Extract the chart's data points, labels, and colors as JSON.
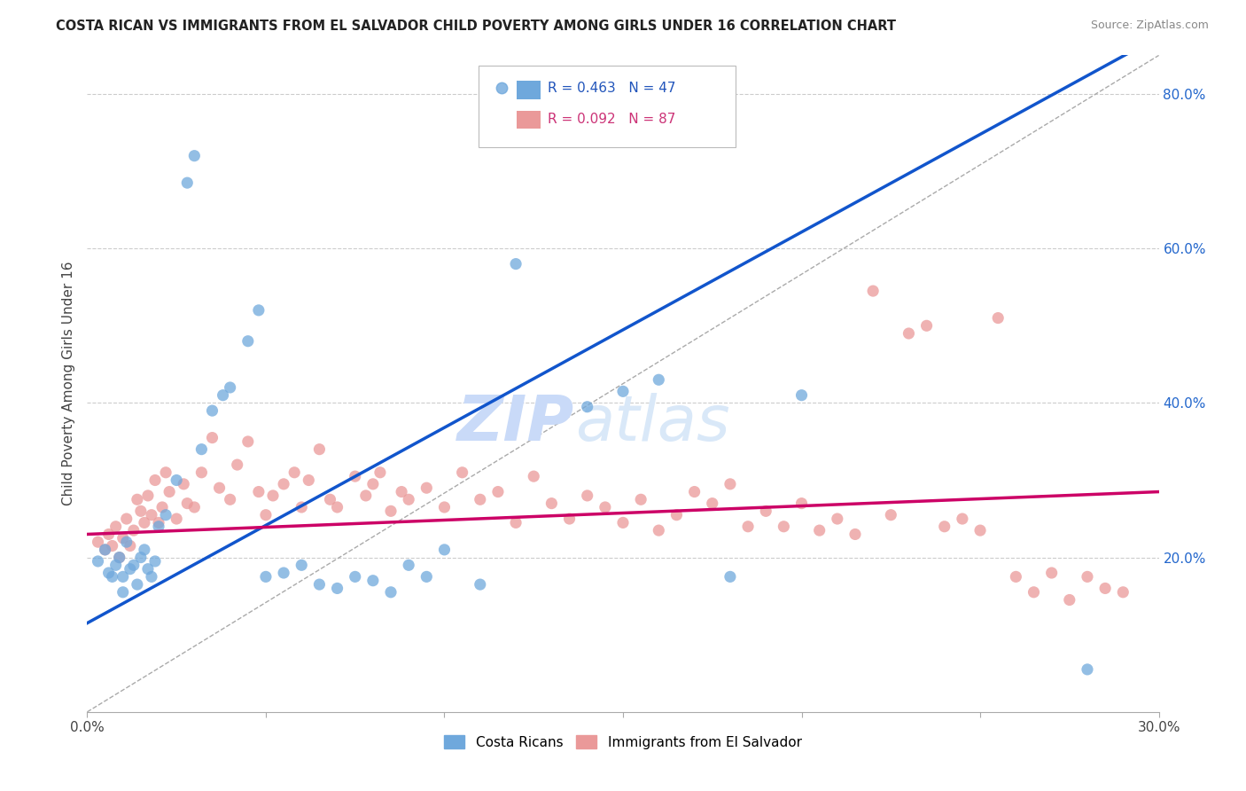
{
  "title": "COSTA RICAN VS IMMIGRANTS FROM EL SALVADOR CHILD POVERTY AMONG GIRLS UNDER 16 CORRELATION CHART",
  "source": "Source: ZipAtlas.com",
  "ylabel": "Child Poverty Among Girls Under 16",
  "xmin": 0.0,
  "xmax": 0.3,
  "ymin": 0.0,
  "ymax": 0.85,
  "right_yticks": [
    0.2,
    0.4,
    0.6,
    0.8
  ],
  "right_yticklabels": [
    "20.0%",
    "40.0%",
    "60.0%",
    "80.0%"
  ],
  "blue_color": "#6fa8dc",
  "pink_color": "#ea9999",
  "blue_line_color": "#1155cc",
  "pink_line_color": "#cc0066",
  "legend_R_blue": "R = 0.463",
  "legend_N_blue": "N = 47",
  "legend_R_pink": "R = 0.092",
  "legend_N_pink": "N = 87",
  "legend_label_blue": "Costa Ricans",
  "legend_label_pink": "Immigrants from El Salvador",
  "blue_scatter_x": [
    0.003,
    0.005,
    0.006,
    0.007,
    0.008,
    0.009,
    0.01,
    0.01,
    0.011,
    0.012,
    0.013,
    0.014,
    0.015,
    0.016,
    0.017,
    0.018,
    0.019,
    0.02,
    0.022,
    0.025,
    0.028,
    0.03,
    0.032,
    0.035,
    0.038,
    0.04,
    0.045,
    0.048,
    0.05,
    0.055,
    0.06,
    0.065,
    0.07,
    0.075,
    0.08,
    0.085,
    0.09,
    0.095,
    0.1,
    0.11,
    0.12,
    0.14,
    0.15,
    0.16,
    0.18,
    0.2,
    0.28
  ],
  "blue_scatter_y": [
    0.195,
    0.21,
    0.18,
    0.175,
    0.19,
    0.2,
    0.155,
    0.175,
    0.22,
    0.185,
    0.19,
    0.165,
    0.2,
    0.21,
    0.185,
    0.175,
    0.195,
    0.24,
    0.255,
    0.3,
    0.685,
    0.72,
    0.34,
    0.39,
    0.41,
    0.42,
    0.48,
    0.52,
    0.175,
    0.18,
    0.19,
    0.165,
    0.16,
    0.175,
    0.17,
    0.155,
    0.19,
    0.175,
    0.21,
    0.165,
    0.58,
    0.395,
    0.415,
    0.43,
    0.175,
    0.41,
    0.055
  ],
  "pink_scatter_x": [
    0.003,
    0.005,
    0.006,
    0.007,
    0.008,
    0.009,
    0.01,
    0.011,
    0.012,
    0.013,
    0.014,
    0.015,
    0.016,
    0.017,
    0.018,
    0.019,
    0.02,
    0.021,
    0.022,
    0.023,
    0.025,
    0.027,
    0.028,
    0.03,
    0.032,
    0.035,
    0.037,
    0.04,
    0.042,
    0.045,
    0.048,
    0.05,
    0.052,
    0.055,
    0.058,
    0.06,
    0.062,
    0.065,
    0.068,
    0.07,
    0.075,
    0.078,
    0.08,
    0.082,
    0.085,
    0.088,
    0.09,
    0.095,
    0.1,
    0.105,
    0.11,
    0.115,
    0.12,
    0.125,
    0.13,
    0.135,
    0.14,
    0.145,
    0.15,
    0.155,
    0.16,
    0.165,
    0.17,
    0.175,
    0.18,
    0.185,
    0.19,
    0.195,
    0.2,
    0.205,
    0.21,
    0.215,
    0.22,
    0.225,
    0.23,
    0.235,
    0.24,
    0.245,
    0.25,
    0.255,
    0.26,
    0.265,
    0.27,
    0.275,
    0.28,
    0.285,
    0.29
  ],
  "pink_scatter_y": [
    0.22,
    0.21,
    0.23,
    0.215,
    0.24,
    0.2,
    0.225,
    0.25,
    0.215,
    0.235,
    0.275,
    0.26,
    0.245,
    0.28,
    0.255,
    0.3,
    0.245,
    0.265,
    0.31,
    0.285,
    0.25,
    0.295,
    0.27,
    0.265,
    0.31,
    0.355,
    0.29,
    0.275,
    0.32,
    0.35,
    0.285,
    0.255,
    0.28,
    0.295,
    0.31,
    0.265,
    0.3,
    0.34,
    0.275,
    0.265,
    0.305,
    0.28,
    0.295,
    0.31,
    0.26,
    0.285,
    0.275,
    0.29,
    0.265,
    0.31,
    0.275,
    0.285,
    0.245,
    0.305,
    0.27,
    0.25,
    0.28,
    0.265,
    0.245,
    0.275,
    0.235,
    0.255,
    0.285,
    0.27,
    0.295,
    0.24,
    0.26,
    0.24,
    0.27,
    0.235,
    0.25,
    0.23,
    0.545,
    0.255,
    0.49,
    0.5,
    0.24,
    0.25,
    0.235,
    0.51,
    0.175,
    0.155,
    0.18,
    0.145,
    0.175,
    0.16,
    0.155
  ],
  "grid_color": "#cccccc",
  "bg_color": "#ffffff",
  "blue_trendline_x0": 0.0,
  "blue_trendline_y0": 0.115,
  "blue_trendline_x1": 0.16,
  "blue_trendline_y1": 0.52,
  "pink_trendline_x0": 0.0,
  "pink_trendline_y0": 0.23,
  "pink_trendline_x1": 0.3,
  "pink_trendline_y1": 0.285
}
